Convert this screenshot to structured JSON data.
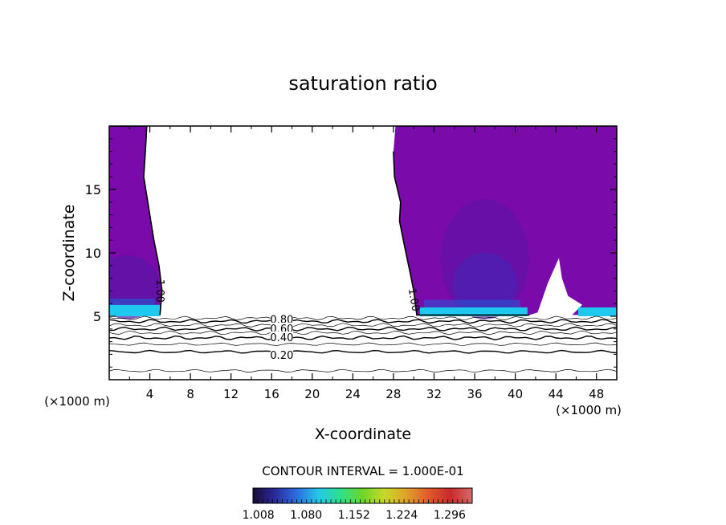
{
  "chart_data": {
    "type": "contour",
    "title": "saturation ratio",
    "xlabel": "X-coordinate",
    "ylabel": "Z-coordinate",
    "x_unit_label": "(×1000 m)",
    "x_unit_label_right": "(×1000 m)",
    "xlim": [
      0,
      50
    ],
    "ylim": [
      0,
      20
    ],
    "x_ticks": [
      4,
      8,
      12,
      16,
      20,
      24,
      28,
      32,
      36,
      40,
      44,
      48
    ],
    "y_ticks": [
      5,
      10,
      15
    ],
    "contour_interval_text": "CONTOUR INTERVAL = 1.000E-01",
    "contour_labels": [
      "1.00",
      "1.00",
      "0.80",
      "0.60",
      "0.40",
      "0.20"
    ],
    "colorbar": {
      "tick_labels": [
        "1.008",
        "1.080",
        "1.152",
        "1.224",
        "1.296"
      ],
      "min": 1.0,
      "max": 1.33,
      "colormap": [
        "#1a0a3a",
        "#2a2a9a",
        "#2d6fe0",
        "#25c8e8",
        "#2ee08a",
        "#6fd62a",
        "#c8d82a",
        "#e0a02a",
        "#e05a2a",
        "#c82a2a",
        "#d86a6a"
      ]
    },
    "fill_color": "#7a0aaa",
    "fill_color_dark": "#5a14a4",
    "fill_color_cyan": "#1ec8ee",
    "supersaturated_regions": [
      {
        "name": "left",
        "x_range": [
          0,
          5.2
        ],
        "z_range": [
          5.0,
          20
        ]
      },
      {
        "name": "right",
        "x_range": [
          28.2,
          50
        ],
        "z_range": [
          5.0,
          20
        ]
      }
    ],
    "subsaturated_contour_levels": [
      0.1,
      0.2,
      0.3,
      0.4,
      0.5,
      0.6,
      0.7,
      0.8,
      0.9
    ]
  }
}
